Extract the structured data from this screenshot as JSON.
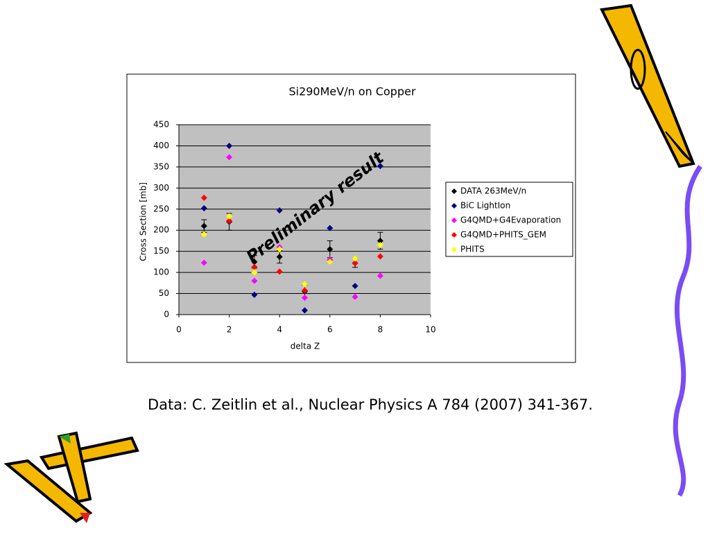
{
  "chart_data": {
    "type": "scatter",
    "title": "Si290MeV/n on Copper",
    "x_label": "delta Z",
    "y_label": "Cross Section [mb]",
    "x": [
      1,
      2,
      3,
      4,
      5,
      6,
      7,
      8
    ],
    "xlim": [
      0,
      10
    ],
    "xticks": [
      0,
      2,
      4,
      6,
      8,
      10
    ],
    "ylim": [
      0,
      450
    ],
    "yticks": [
      0,
      50,
      100,
      150,
      200,
      250,
      300,
      350,
      400,
      450
    ],
    "grid": true,
    "legend": "right",
    "series": [
      {
        "name": "DATA 263MeV/n",
        "color": "#000000",
        "values": [
          210,
          220,
          125,
          137,
          55,
          155,
          122,
          175
        ],
        "errors": [
          15,
          20,
          15,
          15,
          15,
          20,
          10,
          20
        ]
      },
      {
        "name": "BiC LightIon",
        "color": "#000080",
        "values": [
          252,
          400,
          47,
          247,
          10,
          205,
          68,
          352
        ]
      },
      {
        "name": "G4QMD+G4Evaporation",
        "color": "#ff00ff",
        "values": [
          123,
          373,
          80,
          160,
          40,
          130,
          42,
          92
        ]
      },
      {
        "name": "G4QMD+PHITS_GEM",
        "color": "#ff0000",
        "values": [
          277,
          222,
          113,
          102,
          57,
          125,
          122,
          138
        ]
      },
      {
        "name": "PHITS",
        "color": "#ffff00",
        "values": [
          190,
          233,
          100,
          155,
          72,
          125,
          133,
          165
        ]
      }
    ],
    "annotation": "Preliminary result"
  },
  "caption": "Data: C. Zeitlin et al., Nuclear Physics A 784 (2007) 341-367."
}
